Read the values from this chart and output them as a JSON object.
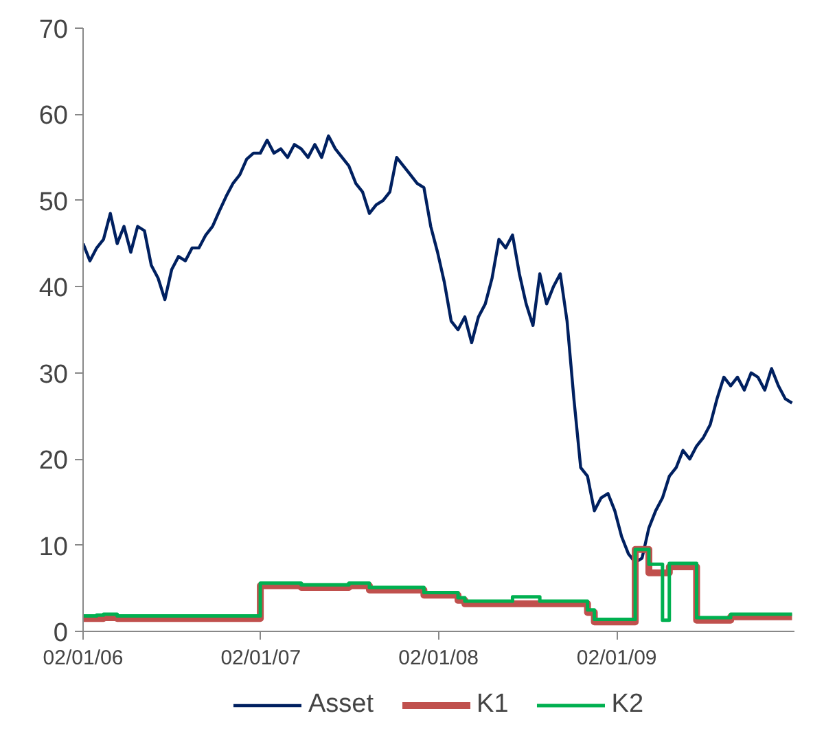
{
  "chart_data": {
    "type": "line",
    "x": [
      "2006-01-02",
      "2006-01-16",
      "2006-01-30",
      "2006-02-13",
      "2006-02-27",
      "2006-03-13",
      "2006-03-27",
      "2006-04-10",
      "2006-04-24",
      "2006-05-08",
      "2006-05-22",
      "2006-06-05",
      "2006-06-19",
      "2006-07-03",
      "2006-07-17",
      "2006-07-31",
      "2006-08-14",
      "2006-08-28",
      "2006-09-11",
      "2006-09-25",
      "2006-10-09",
      "2006-10-23",
      "2006-11-06",
      "2006-11-20",
      "2006-12-04",
      "2006-12-18",
      "2007-01-01",
      "2007-01-15",
      "2007-01-29",
      "2007-02-12",
      "2007-02-26",
      "2007-03-12",
      "2007-03-26",
      "2007-04-09",
      "2007-04-23",
      "2007-05-07",
      "2007-05-21",
      "2007-06-04",
      "2007-06-18",
      "2007-07-02",
      "2007-07-16",
      "2007-07-30",
      "2007-08-13",
      "2007-08-27",
      "2007-09-10",
      "2007-09-24",
      "2007-10-08",
      "2007-10-22",
      "2007-11-05",
      "2007-11-19",
      "2007-12-03",
      "2007-12-17",
      "2007-12-31",
      "2008-01-14",
      "2008-01-28",
      "2008-02-11",
      "2008-02-25",
      "2008-03-10",
      "2008-03-24",
      "2008-04-07",
      "2008-04-21",
      "2008-05-05",
      "2008-05-19",
      "2008-06-02",
      "2008-06-16",
      "2008-06-30",
      "2008-07-14",
      "2008-07-28",
      "2008-08-11",
      "2008-08-25",
      "2008-09-08",
      "2008-09-22",
      "2008-10-06",
      "2008-10-20",
      "2008-11-03",
      "2008-11-17",
      "2008-12-01",
      "2008-12-15",
      "2008-12-29",
      "2009-01-12",
      "2009-01-26",
      "2009-02-09",
      "2009-02-23",
      "2009-03-09",
      "2009-03-23",
      "2009-04-06",
      "2009-04-20",
      "2009-05-04",
      "2009-05-18",
      "2009-06-01",
      "2009-06-15",
      "2009-06-29",
      "2009-07-13",
      "2009-07-27",
      "2009-08-10",
      "2009-08-24",
      "2009-09-07",
      "2009-09-21",
      "2009-10-05",
      "2009-10-19",
      "2009-11-02",
      "2009-11-16",
      "2009-11-30",
      "2009-12-14",
      "2009-12-28"
    ],
    "series": [
      {
        "name": "Asset",
        "color": "#002060",
        "values": [
          45,
          43,
          44.5,
          45.5,
          48.5,
          45,
          47,
          44,
          47,
          46.5,
          42.5,
          41,
          38.5,
          42,
          43.5,
          43,
          44.5,
          44.5,
          46,
          47,
          48.8,
          50.5,
          52,
          53,
          54.8,
          55.5,
          55.5,
          57,
          55.5,
          56,
          55,
          56.5,
          56,
          55,
          56.5,
          55,
          57.5,
          56,
          55,
          54,
          52,
          51,
          48.5,
          49.5,
          50,
          51,
          55,
          54,
          53,
          52,
          51.5,
          47,
          44,
          40.5,
          36,
          35,
          36.5,
          33.5,
          36.5,
          38,
          41,
          45.5,
          44.5,
          46,
          41.5,
          38,
          35.5,
          41.5,
          38,
          40,
          41.5,
          36,
          27,
          19,
          18,
          14,
          15.5,
          16,
          14,
          11,
          9,
          8,
          8.5,
          12,
          14,
          15.5,
          18,
          19,
          21,
          20,
          21.5,
          22.5,
          24,
          27,
          29.5,
          28.5,
          29.5,
          28,
          30,
          29.5,
          28,
          30.5,
          28.5,
          27,
          26.5
        ]
      },
      {
        "name": "K1",
        "color": "#c0504d",
        "type": "step",
        "values": [
          1.5,
          1.5,
          1.5,
          1.6,
          1.6,
          1.5,
          1.5,
          1.5,
          1.5,
          1.5,
          1.5,
          1.5,
          1.5,
          1.5,
          1.5,
          1.5,
          1.5,
          1.5,
          1.5,
          1.5,
          1.5,
          1.5,
          1.5,
          1.5,
          1.5,
          1.5,
          5.3,
          5.3,
          5.3,
          5.3,
          5.3,
          5.3,
          5.1,
          5.1,
          5.1,
          5.1,
          5.1,
          5.1,
          5.1,
          5.3,
          5.3,
          5.3,
          4.8,
          4.8,
          4.8,
          4.8,
          4.8,
          4.8,
          4.8,
          4.8,
          4.2,
          4.2,
          4.2,
          4.2,
          4.2,
          3.6,
          3.2,
          3.2,
          3.2,
          3.2,
          3.2,
          3.2,
          3.2,
          3.2,
          3.2,
          3.2,
          3.2,
          3.2,
          3.2,
          3.2,
          3.2,
          3.2,
          3.2,
          3.2,
          2.2,
          1.1,
          1.1,
          1.1,
          1.1,
          1.1,
          1.1,
          9.5,
          9.5,
          6.8,
          6.8,
          6.8,
          7.5,
          7.5,
          7.5,
          7.5,
          1.3,
          1.3,
          1.3,
          1.3,
          1.3,
          1.7,
          1.7,
          1.7,
          1.7,
          1.7,
          1.7,
          1.7,
          1.7,
          1.7,
          1.7
        ]
      },
      {
        "name": "K2",
        "color": "#00b050",
        "type": "step",
        "values": [
          1.8,
          1.8,
          1.9,
          2.0,
          2.0,
          1.8,
          1.8,
          1.8,
          1.8,
          1.8,
          1.8,
          1.8,
          1.8,
          1.8,
          1.8,
          1.8,
          1.8,
          1.8,
          1.8,
          1.8,
          1.8,
          1.8,
          1.8,
          1.8,
          1.8,
          1.8,
          5.6,
          5.6,
          5.6,
          5.6,
          5.6,
          5.6,
          5.4,
          5.4,
          5.4,
          5.4,
          5.4,
          5.4,
          5.4,
          5.6,
          5.6,
          5.6,
          5.1,
          5.1,
          5.1,
          5.1,
          5.1,
          5.1,
          5.1,
          5.1,
          4.5,
          4.5,
          4.5,
          4.5,
          4.5,
          3.9,
          3.5,
          3.5,
          3.5,
          3.5,
          3.5,
          3.5,
          3.5,
          4.0,
          4.0,
          4.0,
          4.0,
          3.5,
          3.5,
          3.5,
          3.5,
          3.5,
          3.5,
          3.5,
          2.5,
          1.4,
          1.4,
          1.4,
          1.4,
          1.4,
          1.4,
          9.5,
          9.5,
          7.8,
          7.8,
          1.3,
          7.9,
          7.9,
          7.9,
          7.9,
          1.6,
          1.6,
          1.6,
          1.6,
          1.6,
          2.0,
          2.0,
          2.0,
          2.0,
          2.0,
          2.0,
          2.0,
          2.0,
          2.0,
          2.0
        ]
      }
    ],
    "xlim": [
      "2006-01-02",
      "2010-01-02"
    ],
    "xticks": [
      {
        "value": "2006-01-02",
        "label": "02/01/06"
      },
      {
        "value": "2007-01-02",
        "label": "02/01/07"
      },
      {
        "value": "2008-01-02",
        "label": "02/01/08"
      },
      {
        "value": "2009-01-02",
        "label": "02/01/09"
      }
    ],
    "ylim": [
      0,
      70
    ],
    "yticks": [
      0,
      10,
      20,
      30,
      40,
      50,
      60,
      70
    ],
    "grid": false,
    "legend": "bottom"
  }
}
